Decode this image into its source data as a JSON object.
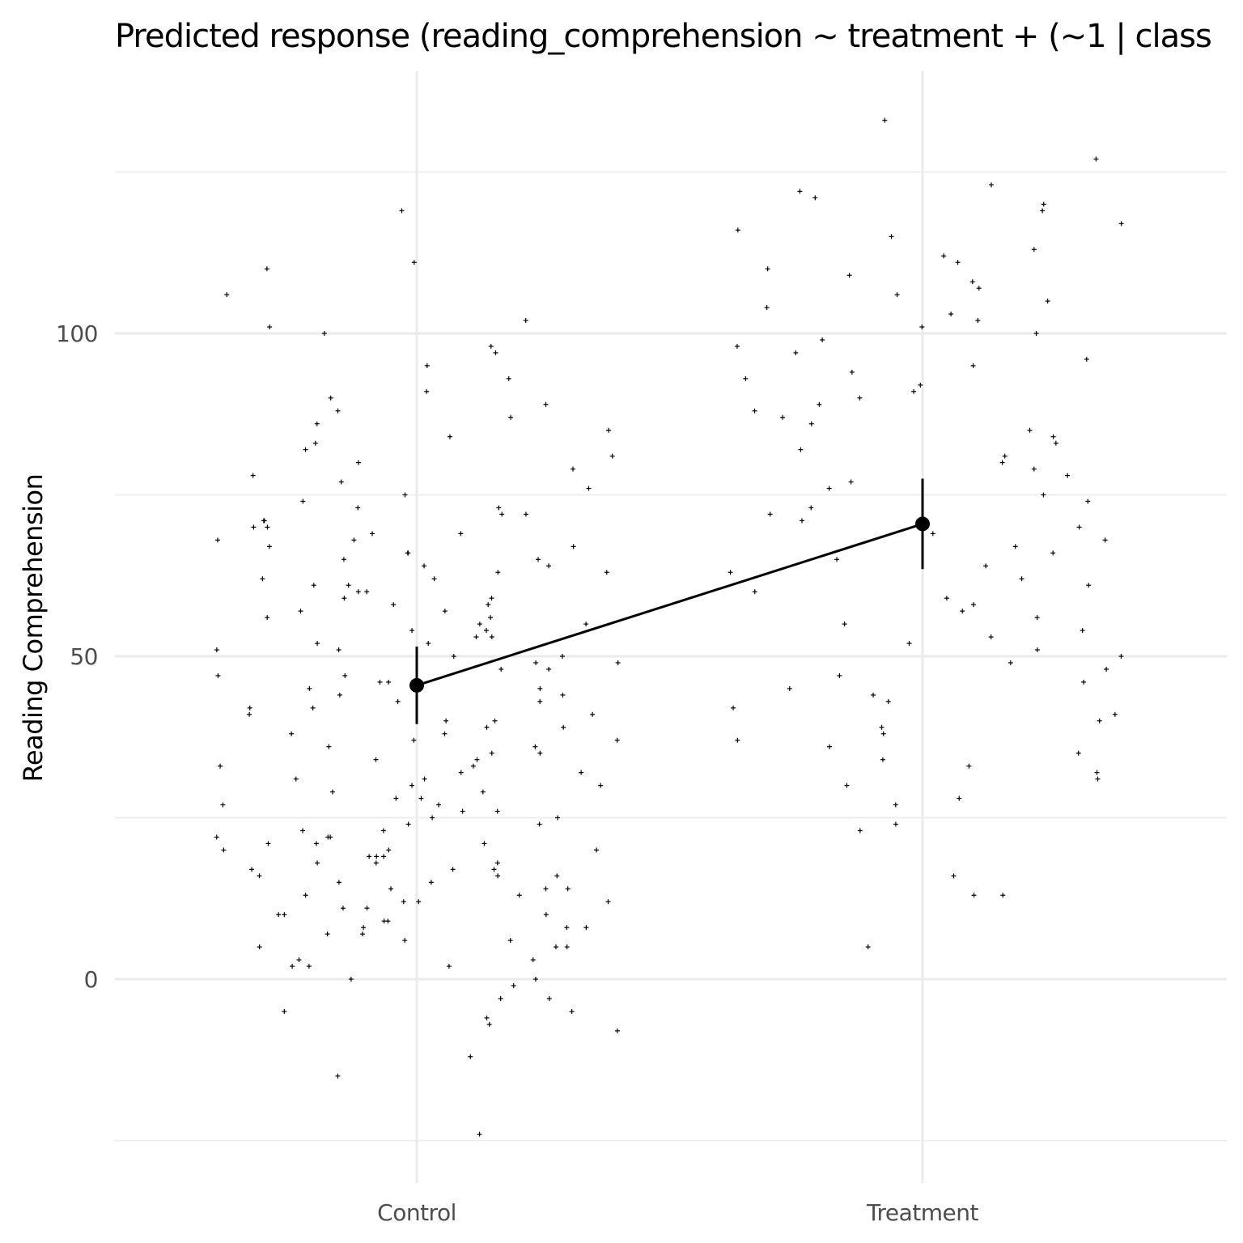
{
  "chart_data": {
    "type": "scatter",
    "title": "Predicted response (reading_comprehension ~ treatment + (~1 | class",
    "xlabel": "",
    "ylabel": "Reading Comprehension",
    "categories": [
      "Control",
      "Treatment"
    ],
    "ylim": [
      -25,
      140
    ],
    "y_ticks": [
      0,
      50,
      100
    ],
    "y_minor_ticks": [
      -25,
      25,
      75,
      125
    ],
    "grid": true,
    "point_shape": "plus",
    "fitted": {
      "estimates": [
        45.5,
        70.5
      ],
      "ci_lower": [
        39.5,
        63.5
      ],
      "ci_upper": [
        51.5,
        77.5
      ]
    },
    "raw_points": [
      {
        "category": "Control",
        "y": [
          -24,
          -15,
          -12,
          -8,
          -7,
          -6,
          -5,
          -5,
          -3,
          -3,
          -1,
          0,
          0,
          2,
          2,
          2,
          3,
          3,
          5,
          5,
          5,
          6,
          6,
          7,
          7,
          8,
          8,
          8,
          9,
          9,
          10,
          10,
          10,
          11,
          11,
          12,
          12,
          12,
          13,
          13,
          14,
          14,
          14,
          15,
          15,
          16,
          16,
          16,
          17,
          17,
          17,
          18,
          18,
          18,
          19,
          19,
          19,
          20,
          20,
          20,
          21,
          21,
          21,
          22,
          22,
          22,
          23,
          23,
          24,
          24,
          25,
          25,
          26,
          26,
          27,
          27,
          28,
          28,
          29,
          29,
          30,
          30,
          31,
          31,
          32,
          32,
          33,
          33,
          34,
          34,
          35,
          35,
          36,
          36,
          37,
          37,
          38,
          38,
          39,
          39,
          40,
          40,
          41,
          41,
          42,
          42,
          43,
          43,
          44,
          44,
          45,
          45,
          46,
          46,
          47,
          47,
          48,
          48,
          49,
          49,
          50,
          50,
          51,
          51,
          52,
          52,
          53,
          53,
          54,
          54,
          55,
          55,
          56,
          56,
          57,
          57,
          58,
          58,
          59,
          59,
          60,
          60,
          61,
          61,
          62,
          62,
          63,
          63,
          64,
          64,
          65,
          65,
          66,
          66,
          67,
          67,
          68,
          68,
          69,
          69,
          70,
          70,
          71,
          71,
          72,
          72,
          73,
          73,
          74,
          75,
          76,
          77,
          78,
          79,
          80,
          81,
          82,
          83,
          84,
          85,
          86,
          87,
          88,
          89,
          90,
          91,
          93,
          95,
          97,
          98,
          100,
          101,
          102,
          106,
          110,
          111,
          119
        ]
      },
      {
        "category": "Treatment",
        "y": [
          5,
          13,
          13,
          16,
          23,
          24,
          27,
          28,
          30,
          31,
          32,
          33,
          34,
          35,
          36,
          37,
          38,
          39,
          40,
          41,
          42,
          43,
          44,
          45,
          46,
          47,
          48,
          49,
          50,
          51,
          52,
          53,
          54,
          55,
          56,
          57,
          58,
          59,
          60,
          61,
          62,
          63,
          64,
          65,
          66,
          67,
          68,
          69,
          70,
          71,
          72,
          73,
          74,
          75,
          76,
          77,
          78,
          79,
          80,
          81,
          82,
          83,
          84,
          85,
          86,
          87,
          88,
          89,
          90,
          91,
          92,
          93,
          94,
          95,
          96,
          97,
          98,
          99,
          100,
          101,
          102,
          103,
          104,
          105,
          106,
          107,
          108,
          109,
          110,
          111,
          112,
          113,
          115,
          116,
          117,
          119,
          120,
          121,
          122,
          123,
          127,
          133
        ]
      }
    ]
  }
}
